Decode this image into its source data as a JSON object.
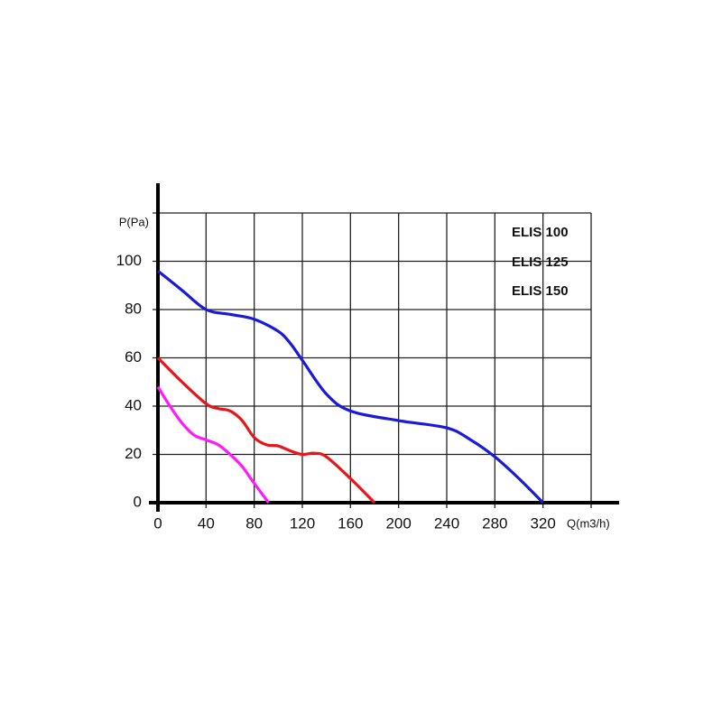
{
  "chart_data": {
    "type": "line",
    "y_label": "P(Pa)",
    "x_label": "Q(m3/h)",
    "xlim": [
      0,
      360
    ],
    "xticks": [
      0,
      40,
      80,
      120,
      160,
      200,
      240,
      280,
      320
    ],
    "ylim": [
      0,
      120
    ],
    "yticks": [
      0,
      20,
      40,
      60,
      80,
      100
    ],
    "grid": true,
    "legend": "top-right",
    "series": [
      {
        "name": "ELIS 100",
        "color": "#ff19ff",
        "x": [
          0,
          10,
          20,
          30,
          40,
          50,
          60,
          70,
          80,
          92
        ],
        "values": [
          48,
          40,
          33,
          28,
          26,
          24,
          20,
          15,
          8,
          0
        ]
      },
      {
        "name": "ELIS 125",
        "color": "#e8161b",
        "x": [
          0,
          20,
          40,
          50,
          60,
          70,
          80,
          90,
          100,
          110,
          120,
          130,
          140,
          160,
          180
        ],
        "values": [
          60,
          50,
          41,
          39,
          38,
          34,
          27,
          24,
          23.5,
          21.5,
          20,
          20.5,
          19,
          10,
          0
        ]
      },
      {
        "name": "ELIS 150",
        "color": "#1a1adb",
        "x": [
          0,
          20,
          40,
          60,
          80,
          100,
          110,
          120,
          140,
          160,
          200,
          240,
          260,
          280,
          300,
          320
        ],
        "values": [
          96,
          88,
          80,
          78,
          76,
          71,
          66,
          59,
          45,
          38,
          34,
          31,
          26,
          19,
          10,
          0
        ]
      }
    ]
  }
}
